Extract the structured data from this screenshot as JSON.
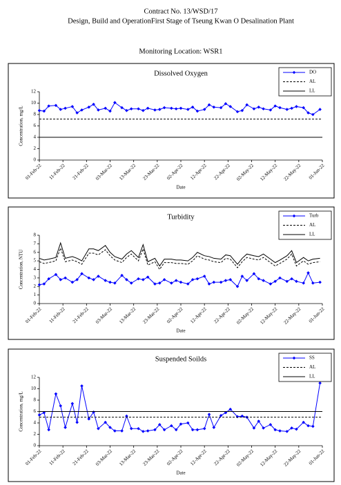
{
  "header": {
    "contract": "Contract No. 13/WSD/17",
    "project": "Design, Build and OperationFirst Stage  of Tseung Kwan O Desalination Plant",
    "location": "Monitoring Location: WSR1"
  },
  "chart_data": [
    {
      "type": "line",
      "title": "Dissolved Oxygen",
      "y_label": "Concentration, mg/L",
      "x_label": "Date",
      "x": [
        "2022-02-01",
        "2022-02-03",
        "2022-02-05",
        "2022-02-08",
        "2022-02-10",
        "2022-02-12",
        "2022-02-15",
        "2022-02-17",
        "2022-02-19",
        "2022-02-22",
        "2022-02-24",
        "2022-02-26",
        "2022-03-01",
        "2022-03-03",
        "2022-03-05",
        "2022-03-08",
        "2022-03-10",
        "2022-03-12",
        "2022-03-15",
        "2022-03-17",
        "2022-03-19",
        "2022-03-22",
        "2022-03-24",
        "2022-03-26",
        "2022-03-29",
        "2022-03-31",
        "2022-04-02",
        "2022-04-05",
        "2022-04-07",
        "2022-04-09",
        "2022-04-12",
        "2022-04-14",
        "2022-04-16",
        "2022-04-19",
        "2022-04-21",
        "2022-04-23",
        "2022-04-26",
        "2022-04-28",
        "2022-04-30",
        "2022-05-03",
        "2022-05-05",
        "2022-05-07",
        "2022-05-10",
        "2022-05-12",
        "2022-05-14",
        "2022-05-17",
        "2022-05-19",
        "2022-05-21",
        "2022-05-24",
        "2022-05-26",
        "2022-05-28",
        "2022-05-31"
      ],
      "series": [
        {
          "name": "DO",
          "color": "#0000ff",
          "marker": true,
          "values": [
            8.7,
            8.6,
            9.5,
            9.6,
            8.9,
            9.1,
            9.4,
            8.3,
            8.8,
            9.3,
            9.8,
            8.8,
            9.1,
            8.6,
            10.1,
            9.2,
            8.7,
            9.0,
            9.0,
            8.7,
            9.1,
            8.8,
            8.9,
            9.2,
            9.1,
            9.0,
            9.1,
            8.9,
            9.3,
            8.6,
            8.9,
            9.7,
            9.3,
            9.2,
            9.9,
            9.4,
            8.5,
            8.7,
            9.7,
            9.0,
            9.3,
            9.0,
            8.8,
            9.5,
            9.2,
            8.9,
            9.1,
            9.4,
            9.2,
            8.3,
            8.0,
            8.9
          ]
        },
        {
          "name": "AL",
          "color": "#000000",
          "dashed": true,
          "value": 7.2
        },
        {
          "name": "LL",
          "color": "#000000",
          "value": 4.0
        }
      ],
      "xlim": [
        "2022-02-01",
        "2022-06-01"
      ],
      "xticks": [
        {
          "value": "2022-02-01",
          "label": "01-Feb-22"
        },
        {
          "value": "2022-02-11",
          "label": "11-Feb-22"
        },
        {
          "value": "2022-02-21",
          "label": "21-Feb-22"
        },
        {
          "value": "2022-03-03",
          "label": "03-Mar-22"
        },
        {
          "value": "2022-03-13",
          "label": "13-Mar-22"
        },
        {
          "value": "2022-03-23",
          "label": "23-Mar-22"
        },
        {
          "value": "2022-04-02",
          "label": "02-Apr-22"
        },
        {
          "value": "2022-04-12",
          "label": "12-Apr-22"
        },
        {
          "value": "2022-04-22",
          "label": "22-Apr-22"
        },
        {
          "value": "2022-05-02",
          "label": "02-May-22"
        },
        {
          "value": "2022-05-12",
          "label": "12-May-22"
        },
        {
          "value": "2022-05-22",
          "label": "22-May-22"
        },
        {
          "value": "2022-06-01",
          "label": "01-Jun-22"
        }
      ],
      "ylim": [
        0,
        12
      ],
      "yticks": [
        0,
        2,
        4,
        6,
        8,
        10,
        12
      ],
      "legend": "top-right"
    },
    {
      "type": "line",
      "title": "Turbidity",
      "y_label": "Concentration, NTU",
      "x_label": "Date",
      "x": [
        "2022-02-01",
        "2022-02-03",
        "2022-02-05",
        "2022-02-08",
        "2022-02-10",
        "2022-02-12",
        "2022-02-15",
        "2022-02-17",
        "2022-02-19",
        "2022-02-22",
        "2022-02-24",
        "2022-02-26",
        "2022-03-01",
        "2022-03-03",
        "2022-03-05",
        "2022-03-08",
        "2022-03-10",
        "2022-03-12",
        "2022-03-15",
        "2022-03-17",
        "2022-03-19",
        "2022-03-22",
        "2022-03-24",
        "2022-03-26",
        "2022-03-29",
        "2022-03-31",
        "2022-04-02",
        "2022-04-05",
        "2022-04-07",
        "2022-04-09",
        "2022-04-12",
        "2022-04-14",
        "2022-04-16",
        "2022-04-19",
        "2022-04-21",
        "2022-04-23",
        "2022-04-26",
        "2022-04-28",
        "2022-04-30",
        "2022-05-03",
        "2022-05-05",
        "2022-05-07",
        "2022-05-10",
        "2022-05-12",
        "2022-05-14",
        "2022-05-17",
        "2022-05-19",
        "2022-05-21",
        "2022-05-24",
        "2022-05-26",
        "2022-05-28",
        "2022-05-31"
      ],
      "series": [
        {
          "name": "Turb",
          "color": "#0000ff",
          "marker": true,
          "values": [
            2.2,
            2.3,
            2.9,
            3.4,
            2.8,
            3.0,
            2.5,
            2.8,
            3.5,
            3.0,
            2.8,
            3.2,
            2.7,
            2.5,
            2.4,
            3.3,
            2.8,
            2.4,
            2.9,
            2.8,
            3.1,
            2.3,
            2.4,
            2.8,
            2.4,
            2.7,
            2.5,
            2.3,
            2.8,
            2.9,
            3.2,
            2.3,
            2.5,
            2.5,
            2.7,
            2.8,
            2.0,
            3.2,
            2.7,
            3.5,
            2.9,
            2.7,
            2.3,
            2.6,
            3.0,
            2.6,
            2.9,
            2.6,
            2.4,
            3.6,
            2.4,
            2.5
          ]
        },
        {
          "name": "AL",
          "color": "#000000",
          "dashed": true,
          "values": [
            4.9,
            4.7,
            4.8,
            5.0,
            6.5,
            4.9,
            5.1,
            4.9,
            4.6,
            5.9,
            5.9,
            5.7,
            6.3,
            5.6,
            5.1,
            4.8,
            5.4,
            5.8,
            5.0,
            6.4,
            4.5,
            4.9,
            4.0,
            4.8,
            4.8,
            4.7,
            4.7,
            4.6,
            5.0,
            5.6,
            5.2,
            5.1,
            4.9,
            4.8,
            5.3,
            5.2,
            4.2,
            4.9,
            5.4,
            5.2,
            5.1,
            5.4,
            4.8,
            4.4,
            4.7,
            5.2,
            5.8,
            4.4,
            5.0,
            4.6,
            4.8,
            4.9
          ]
        },
        {
          "name": "LL",
          "color": "#000000",
          "values": [
            5.3,
            5.1,
            5.2,
            5.4,
            7.1,
            5.3,
            5.5,
            5.3,
            5.0,
            6.4,
            6.4,
            6.2,
            6.8,
            6.0,
            5.5,
            5.2,
            5.8,
            6.2,
            5.4,
            6.9,
            4.9,
            5.3,
            4.4,
            5.2,
            5.2,
            5.1,
            5.1,
            5.0,
            5.4,
            6.0,
            5.6,
            5.5,
            5.3,
            5.2,
            5.7,
            5.6,
            4.6,
            5.3,
            5.8,
            5.6,
            5.5,
            5.8,
            5.2,
            4.8,
            5.1,
            5.6,
            6.2,
            4.8,
            5.4,
            5.0,
            5.2,
            5.3
          ]
        }
      ],
      "xlim": [
        "2022-02-01",
        "2022-06-01"
      ],
      "xticks": [
        {
          "value": "2022-02-01",
          "label": "01-Feb-22"
        },
        {
          "value": "2022-02-11",
          "label": "11-Feb-22"
        },
        {
          "value": "2022-02-21",
          "label": "21-Feb-22"
        },
        {
          "value": "2022-03-03",
          "label": "03-Mar-22"
        },
        {
          "value": "2022-03-13",
          "label": "13-Mar-22"
        },
        {
          "value": "2022-03-23",
          "label": "23-Mar-22"
        },
        {
          "value": "2022-04-02",
          "label": "02-Apr-22"
        },
        {
          "value": "2022-04-12",
          "label": "12-Apr-22"
        },
        {
          "value": "2022-04-22",
          "label": "22-Apr-22"
        },
        {
          "value": "2022-05-02",
          "label": "02-May-22"
        },
        {
          "value": "2022-05-12",
          "label": "12-May-22"
        },
        {
          "value": "2022-05-22",
          "label": "22-May-22"
        },
        {
          "value": "2022-06-01",
          "label": "01-Jun-22"
        }
      ],
      "ylim": [
        0,
        8
      ],
      "yticks": [
        0,
        1,
        2,
        3,
        4,
        5,
        6,
        7,
        8
      ],
      "legend": "top-right"
    },
    {
      "type": "line",
      "title": "Suspended Soilds",
      "y_label": "Concentration, mg/L",
      "x_label": "Date",
      "x": [
        "2022-02-01",
        "2022-02-03",
        "2022-02-05",
        "2022-02-08",
        "2022-02-10",
        "2022-02-12",
        "2022-02-15",
        "2022-02-17",
        "2022-02-19",
        "2022-02-22",
        "2022-02-24",
        "2022-02-26",
        "2022-03-01",
        "2022-03-03",
        "2022-03-05",
        "2022-03-08",
        "2022-03-10",
        "2022-03-12",
        "2022-03-15",
        "2022-03-17",
        "2022-03-19",
        "2022-03-22",
        "2022-03-24",
        "2022-03-26",
        "2022-03-29",
        "2022-03-31",
        "2022-04-02",
        "2022-04-05",
        "2022-04-07",
        "2022-04-09",
        "2022-04-12",
        "2022-04-14",
        "2022-04-16",
        "2022-04-19",
        "2022-04-21",
        "2022-04-23",
        "2022-04-26",
        "2022-04-28",
        "2022-04-30",
        "2022-05-03",
        "2022-05-05",
        "2022-05-07",
        "2022-05-10",
        "2022-05-12",
        "2022-05-14",
        "2022-05-17",
        "2022-05-19",
        "2022-05-21",
        "2022-05-24",
        "2022-05-26",
        "2022-05-28",
        "2022-05-31"
      ],
      "series": [
        {
          "name": "SS",
          "color": "#0000ff",
          "marker": true,
          "values": [
            5.4,
            5.8,
            2.8,
            9.1,
            7.0,
            3.2,
            7.4,
            4.1,
            10.5,
            4.7,
            5.9,
            3.0,
            4.1,
            3.2,
            2.6,
            2.6,
            5.2,
            3.0,
            3.0,
            2.5,
            2.6,
            2.8,
            3.7,
            2.8,
            3.5,
            2.8,
            3.8,
            4.0,
            2.8,
            2.8,
            3.0,
            5.5,
            3.2,
            5.3,
            5.8,
            6.4,
            5.1,
            5.2,
            5.0,
            3.1,
            4.3,
            3.1,
            3.7,
            2.8,
            2.6,
            2.5,
            3.1,
            2.9,
            4.1,
            3.5,
            3.4,
            11.0
          ]
        },
        {
          "name": "AL",
          "color": "#000000",
          "dashed": true,
          "value": 5
        },
        {
          "name": "LL",
          "color": "#000000",
          "value": 6
        }
      ],
      "xlim": [
        "2022-02-01",
        "2022-06-01"
      ],
      "xticks": [
        {
          "value": "2022-02-01",
          "label": "01-Feb-22"
        },
        {
          "value": "2022-02-11",
          "label": "11-Feb-22"
        },
        {
          "value": "2022-02-21",
          "label": "21-Feb-22"
        },
        {
          "value": "2022-03-03",
          "label": "03-Mar-22"
        },
        {
          "value": "2022-03-13",
          "label": "13-Mar-22"
        },
        {
          "value": "2022-03-23",
          "label": "23-Mar-22"
        },
        {
          "value": "2022-04-02",
          "label": "02-Apr-22"
        },
        {
          "value": "2022-04-12",
          "label": "12-Apr-22"
        },
        {
          "value": "2022-04-22",
          "label": "22-Apr-22"
        },
        {
          "value": "2022-05-02",
          "label": "02-May-22"
        },
        {
          "value": "2022-05-12",
          "label": "12-May-22"
        },
        {
          "value": "2022-05-22",
          "label": "22-May-22"
        },
        {
          "value": "2022-06-01",
          "label": "01-Jun-22"
        }
      ],
      "ylim": [
        0,
        12
      ],
      "yticks": [
        0,
        2,
        4,
        6,
        8,
        10,
        12
      ],
      "legend": "top-right"
    }
  ]
}
